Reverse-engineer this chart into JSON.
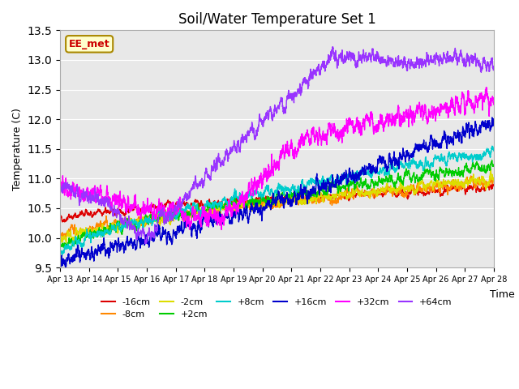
{
  "title": "Soil/Water Temperature Set 1",
  "xlabel": "Time",
  "ylabel": "Temperature (C)",
  "ylim": [
    9.5,
    13.5
  ],
  "xlim_start": 0,
  "xlim_end": 15,
  "x_tick_labels": [
    "Apr 13",
    "Apr 14",
    "Apr 15",
    "Apr 16",
    "Apr 17",
    "Apr 18",
    "Apr 19",
    "Apr 20",
    "Apr 21",
    "Apr 22",
    "Apr 23",
    "Apr 24",
    "Apr 25",
    "Apr 26",
    "Apr 27",
    "Apr 28"
  ],
  "series": [
    {
      "label": "-16cm",
      "color": "#dd0000",
      "start": 10.32,
      "end": 10.85,
      "noise": 0.06,
      "smooth": 0.92
    },
    {
      "label": "-8cm",
      "color": "#ff8800",
      "start": 10.03,
      "end": 10.95,
      "noise": 0.07,
      "smooth": 0.9
    },
    {
      "label": "-2cm",
      "color": "#dddd00",
      "start": 9.95,
      "end": 11.0,
      "noise": 0.07,
      "smooth": 0.9
    },
    {
      "label": "+2cm",
      "color": "#00cc00",
      "start": 9.85,
      "end": 11.2,
      "noise": 0.07,
      "smooth": 0.9
    },
    {
      "label": "+8cm",
      "color": "#00cccc",
      "start": 9.75,
      "end": 11.45,
      "noise": 0.07,
      "smooth": 0.9
    },
    {
      "label": "+16cm",
      "color": "#0000cc",
      "start": 9.6,
      "end": 11.95,
      "noise": 0.09,
      "smooth": 0.88
    },
    {
      "label": "+32cm",
      "color": "#ff00ff",
      "start": 10.82,
      "end": 12.38,
      "noise": 0.1,
      "smooth": 0.85
    },
    {
      "label": "+64cm",
      "color": "#9933ff",
      "start": 10.88,
      "end": 13.05,
      "noise": 0.08,
      "smooth": 0.87
    }
  ],
  "annotation_text": "EE_met",
  "annotation_color": "#cc0000",
  "annotation_bg": "#ffffcc",
  "annotation_border": "#aa8800",
  "bg_color": "#e8e8e8",
  "n_points": 3600,
  "linewidth": 1.0,
  "legend_fontsize": 8,
  "title_fontsize": 12
}
